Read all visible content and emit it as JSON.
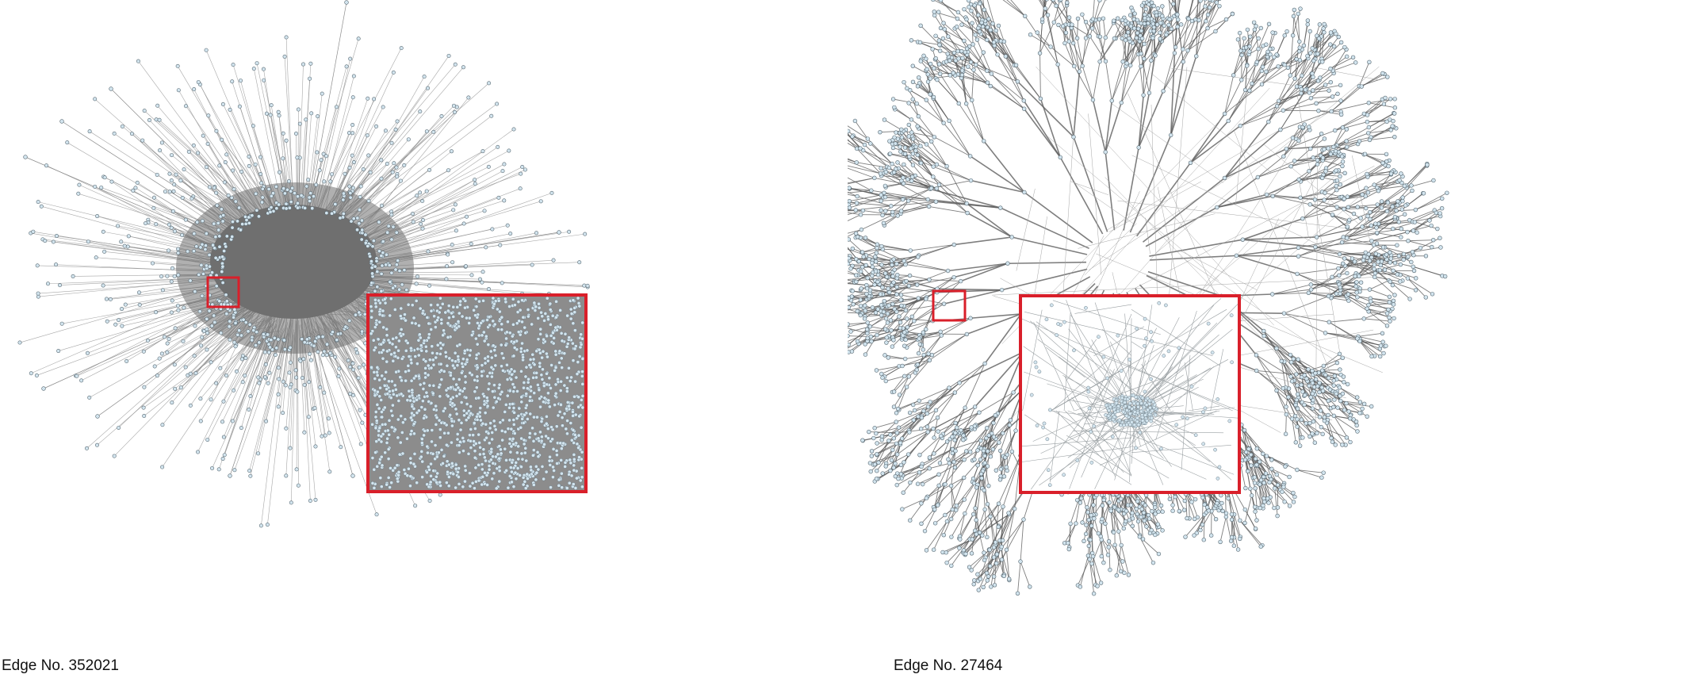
{
  "panels": [
    {
      "id": "left",
      "caption": "Edge No. 352021",
      "layout_style": "dense-core",
      "colors": {
        "edge": "#8a8a8a",
        "core": "#6f6f6f",
        "node_fill": "#d2e4ee",
        "node_stroke": "#5a6a73",
        "highlight": "#d91f2a"
      }
    },
    {
      "id": "right",
      "caption": "Edge No. 27464",
      "layout_style": "branching-tree",
      "colors": {
        "edge": "#8a8a8a",
        "core": "#5e5e5e",
        "node_fill": "#d2e4ee",
        "node_stroke": "#5a6a73",
        "highlight": "#d91f2a"
      }
    }
  ]
}
